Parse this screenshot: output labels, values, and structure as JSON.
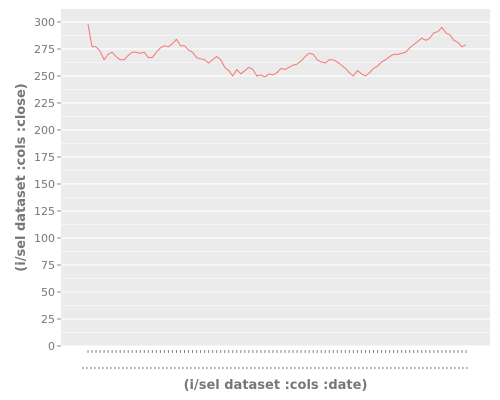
{
  "chart_data": {
    "type": "line",
    "xlabel": "(i/sel dataset :cols :date)",
    "ylabel": "(i/sel dataset :cols :close)",
    "ylim": [
      0,
      312
    ],
    "yticks": [
      0,
      25,
      50,
      75,
      100,
      125,
      150,
      175,
      200,
      225,
      250,
      275,
      300
    ],
    "grid": true,
    "legend": "none",
    "x_tick_labels_visible": false,
    "colors": {
      "panel_background": "#ebebeb",
      "grid": "#ffffff",
      "line": "#f8766d",
      "text": "#777777"
    },
    "series": [
      {
        "values": [
          298,
          277,
          277,
          273,
          265,
          270,
          272,
          268,
          265,
          265,
          269,
          272,
          272,
          271,
          272,
          267,
          267,
          272,
          276,
          278,
          277,
          280,
          284,
          278,
          278,
          274,
          272,
          267,
          266,
          265,
          262,
          265,
          268,
          265,
          258,
          255,
          250,
          256,
          252,
          255,
          258,
          256,
          250,
          251,
          249,
          252,
          251,
          253,
          257,
          256,
          258,
          260,
          261,
          264,
          268,
          271,
          270,
          265,
          263,
          262,
          265,
          265,
          263,
          260,
          257,
          253,
          250,
          255,
          252,
          250,
          253,
          257,
          259,
          263,
          265,
          268,
          270,
          270,
          271,
          272,
          276,
          279,
          282,
          285,
          283,
          285,
          290,
          291,
          295,
          290,
          288,
          283,
          281,
          277,
          279
        ]
      }
    ]
  }
}
